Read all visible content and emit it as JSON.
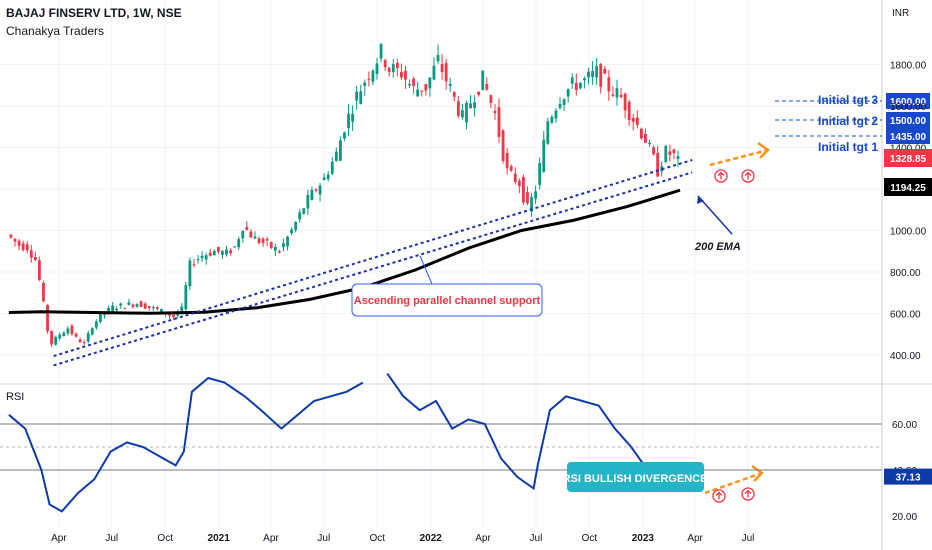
{
  "header": {
    "title": "BAJAJ FINSERV LTD, 1W, NSE",
    "author": "Chanakya Traders"
  },
  "colors": {
    "up": "#089981",
    "down": "#f23645",
    "ema": "#000000",
    "rsi": "#0d3aa8",
    "channel": "#1a2fa0",
    "target": "#1848cc",
    "arrow": "#f7941d",
    "rsi_box": "#22b5c7"
  },
  "chart_data": [
    {
      "type": "candlestick",
      "title": "BAJAJ FINSERV LTD, 1W, NSE",
      "ylabel": "INR",
      "y_scale": "linear",
      "ylim": [
        330,
        1940
      ],
      "yticks": [
        400,
        600,
        800,
        1000,
        1200,
        1400,
        1600,
        1800
      ],
      "ytick_labels": [
        "400.00",
        "600.00",
        "800.00",
        "1000.00",
        "1200.00",
        "1400.00",
        "1600.00",
        "1800.00"
      ],
      "x_ticks": [
        "Apr",
        "Jul",
        "Oct",
        "2021",
        "Apr",
        "Jul",
        "Oct",
        "2022",
        "Apr",
        "Jul",
        "Oct",
        "2023",
        "Apr",
        "Jul"
      ],
      "grid": true,
      "close_path": [
        [
          "2020-01-06",
          980
        ],
        [
          "2020-01-27",
          930
        ],
        [
          "2020-02-10",
          920
        ],
        [
          "2020-02-24",
          860
        ],
        [
          "2020-03-02",
          760
        ],
        [
          "2020-03-09",
          640
        ],
        [
          "2020-03-16",
          520
        ],
        [
          "2020-03-23",
          455
        ],
        [
          "2020-04-06",
          500
        ],
        [
          "2020-04-20",
          530
        ],
        [
          "2020-05-04",
          480
        ],
        [
          "2020-05-18",
          455
        ],
        [
          "2020-06-01",
          540
        ],
        [
          "2020-06-15",
          590
        ],
        [
          "2020-07-06",
          630
        ],
        [
          "2020-07-27",
          640
        ],
        [
          "2020-08-17",
          650
        ],
        [
          "2020-09-07",
          630
        ],
        [
          "2020-09-28",
          610
        ],
        [
          "2020-10-19",
          585
        ],
        [
          "2020-11-02",
          620
        ],
        [
          "2020-11-16",
          840
        ],
        [
          "2020-12-07",
          880
        ],
        [
          "2020-12-28",
          900
        ],
        [
          "2021-01-18",
          890
        ],
        [
          "2021-02-01",
          920
        ],
        [
          "2021-02-15",
          1020
        ],
        [
          "2021-03-08",
          960
        ],
        [
          "2021-03-29",
          930
        ],
        [
          "2021-04-19",
          900
        ],
        [
          "2021-05-10",
          1000
        ],
        [
          "2021-06-07",
          1150
        ],
        [
          "2021-07-05",
          1250
        ],
        [
          "2021-07-26",
          1370
        ],
        [
          "2021-08-09",
          1500
        ],
        [
          "2021-08-30",
          1650
        ],
        [
          "2021-09-20",
          1760
        ],
        [
          "2021-10-11",
          1860
        ],
        [
          "2021-10-25",
          1780
        ],
        [
          "2021-11-15",
          1760
        ],
        [
          "2021-12-06",
          1680
        ],
        [
          "2021-12-27",
          1690
        ],
        [
          "2022-01-17",
          1820
        ],
        [
          "2022-02-07",
          1680
        ],
        [
          "2022-02-28",
          1540
        ],
        [
          "2022-03-14",
          1620
        ],
        [
          "2022-04-04",
          1730
        ],
        [
          "2022-04-25",
          1560
        ],
        [
          "2022-05-16",
          1280
        ],
        [
          "2022-06-06",
          1230
        ],
        [
          "2022-06-20",
          1100
        ],
        [
          "2022-07-04",
          1200
        ],
        [
          "2022-07-25",
          1530
        ],
        [
          "2022-08-15",
          1640
        ],
        [
          "2022-09-05",
          1700
        ],
        [
          "2022-09-26",
          1720
        ],
        [
          "2022-10-17",
          1760
        ],
        [
          "2022-11-07",
          1690
        ],
        [
          "2022-11-28",
          1640
        ],
        [
          "2022-12-19",
          1540
        ],
        [
          "2023-01-09",
          1440
        ],
        [
          "2023-01-30",
          1290
        ],
        [
          "2023-02-13",
          1380
        ],
        [
          "2023-02-27",
          1360
        ],
        [
          "2023-03-06",
          1328.85
        ]
      ],
      "ema_200": [
        [
          "2020-01-06",
          605
        ],
        [
          "2020-03-02",
          608
        ],
        [
          "2020-06-01",
          605
        ],
        [
          "2020-09-07",
          601
        ],
        [
          "2020-12-07",
          606
        ],
        [
          "2021-03-08",
          628
        ],
        [
          "2021-06-07",
          668
        ],
        [
          "2021-09-06",
          725
        ],
        [
          "2021-12-06",
          810
        ],
        [
          "2022-03-07",
          915
        ],
        [
          "2022-06-06",
          1000
        ],
        [
          "2022-09-05",
          1050
        ],
        [
          "2022-12-05",
          1115
        ],
        [
          "2023-03-06",
          1194.25
        ]
      ],
      "channel_lines": [
        {
          "points": [
            [
              "2020-03-23",
              395
            ],
            [
              "2023-03-27",
              1340
            ]
          ]
        },
        {
          "points": [
            [
              "2020-03-23",
              350
            ],
            [
              "2023-03-27",
              1280
            ]
          ]
        }
      ],
      "target_levels": [
        {
          "label": "Initial tgt 3",
          "value": 1600.0,
          "value_label": "1600.00"
        },
        {
          "label": "Initial tgt 2",
          "value": 1500.0,
          "value_label": "1500.00"
        },
        {
          "label": "Initial tgt 1",
          "value": 1435.0,
          "value_label": "1435.00"
        }
      ],
      "price_labels": [
        {
          "value": 1328.85,
          "text": "1328.85",
          "color": "#f23645"
        },
        {
          "value": 1194.25,
          "text": "1194.25",
          "color": "#000000"
        }
      ],
      "annotations": [
        {
          "text": "200 EMA"
        },
        {
          "text": "Ascending parallel channel support"
        }
      ]
    },
    {
      "type": "line",
      "title": "RSI",
      "ylim": [
        18,
        95
      ],
      "yticks": [
        20,
        40,
        60
      ],
      "ytick_labels": [
        "20.00",
        "40.00",
        "60.00"
      ],
      "levels": [
        60,
        50,
        40
      ],
      "current_value": 37.13,
      "current_label": "37.13",
      "series": [
        {
          "points": [
            [
              "2020-01-06",
              64
            ],
            [
              "2020-02-03",
              58
            ],
            [
              "2020-03-02",
              40
            ],
            [
              "2020-03-16",
              25
            ],
            [
              "2020-04-06",
              22
            ],
            [
              "2020-05-04",
              30
            ],
            [
              "2020-06-01",
              36
            ],
            [
              "2020-06-29",
              48
            ],
            [
              "2020-07-27",
              52
            ],
            [
              "2020-08-24",
              50
            ],
            [
              "2020-09-21",
              46
            ],
            [
              "2020-10-19",
              42
            ],
            [
              "2020-11-02",
              48
            ],
            [
              "2020-11-16",
              74
            ],
            [
              "2020-12-14",
              80
            ],
            [
              "2021-01-11",
              78
            ],
            [
              "2021-02-15",
              72
            ],
            [
              "2021-03-15",
              66
            ],
            [
              "2021-04-19",
              58
            ],
            [
              "2021-05-17",
              64
            ],
            [
              "2021-06-14",
              70
            ],
            [
              "2021-07-12",
              72
            ],
            [
              "2021-08-09",
              74
            ],
            [
              "2021-09-06",
              78
            ],
            [
              "2021-09-20",
              83
            ],
            [
              "2021-10-18",
              82
            ],
            [
              "2021-11-15",
              72
            ],
            [
              "2021-12-13",
              66
            ],
            [
              "2022-01-10",
              70
            ],
            [
              "2022-02-07",
              58
            ],
            [
              "2022-03-07",
              62
            ],
            [
              "2022-04-04",
              60
            ],
            [
              "2022-05-02",
              45
            ],
            [
              "2022-05-30",
              37
            ],
            [
              "2022-06-27",
              32
            ],
            [
              "2022-07-04",
              42
            ],
            [
              "2022-07-25",
              66
            ],
            [
              "2022-08-22",
              72
            ],
            [
              "2022-09-19",
              70
            ],
            [
              "2022-10-17",
              68
            ],
            [
              "2022-11-14",
              58
            ],
            [
              "2022-12-12",
              50
            ],
            [
              "2023-01-09",
              40
            ],
            [
              "2023-01-30",
              34
            ],
            [
              "2023-02-13",
              42
            ],
            [
              "2023-03-06",
              37.13
            ]
          ]
        }
      ],
      "annotations": [
        {
          "text": "RSI BULLISH DIVERGENCE"
        }
      ]
    }
  ]
}
